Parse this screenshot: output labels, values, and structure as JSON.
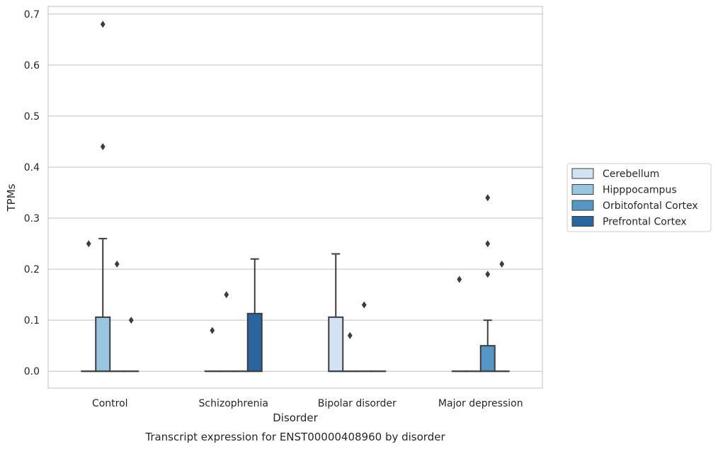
{
  "chart_data": {
    "type": "box",
    "title": "",
    "caption": "Transcript expression for ENST00000408960 by disorder",
    "xlabel": "Disorder",
    "ylabel": "TPMs",
    "ylim": [
      -0.033,
      0.715
    ],
    "yticks": [
      "0.0",
      "0.1",
      "0.2",
      "0.3",
      "0.4",
      "0.5",
      "0.6",
      "0.7"
    ],
    "grid": true,
    "legend_position": "right",
    "categories": [
      "Control",
      "Schizophrenia",
      "Bipolar disorder",
      "Major depression"
    ],
    "series": [
      {
        "name": "Cerebellum",
        "color": "#d2e2f2",
        "boxes": [
          {
            "q1": 0,
            "median": 0,
            "q3": 0,
            "whisker_low": 0,
            "whisker_high": 0,
            "outliers": [
              0.25
            ]
          },
          {
            "q1": 0,
            "median": 0,
            "q3": 0,
            "whisker_low": 0,
            "whisker_high": 0,
            "outliers": [
              0.08
            ]
          },
          {
            "q1": 0,
            "median": 0,
            "q3": 0.106,
            "whisker_low": 0,
            "whisker_high": 0.23,
            "outliers": []
          },
          {
            "q1": 0,
            "median": 0,
            "q3": 0,
            "whisker_low": 0,
            "whisker_high": 0,
            "outliers": [
              0.18
            ]
          }
        ]
      },
      {
        "name": "Hipppocampus",
        "color": "#9ac5df",
        "boxes": [
          {
            "q1": 0,
            "median": 0,
            "q3": 0.106,
            "whisker_low": 0,
            "whisker_high": 0.26,
            "outliers": [
              0.44,
              0.68
            ]
          },
          {
            "q1": 0,
            "median": 0,
            "q3": 0,
            "whisker_low": 0,
            "whisker_high": 0,
            "outliers": [
              0.15
            ]
          },
          {
            "q1": 0,
            "median": 0,
            "q3": 0,
            "whisker_low": 0,
            "whisker_high": 0,
            "outliers": [
              0.07
            ]
          },
          {
            "q1": 0,
            "median": 0,
            "q3": 0,
            "whisker_low": 0,
            "whisker_high": 0,
            "outliers": []
          }
        ]
      },
      {
        "name": "Orbitofontal Cortex",
        "color": "#5596c5",
        "boxes": [
          {
            "q1": 0,
            "median": 0,
            "q3": 0,
            "whisker_low": 0,
            "whisker_high": 0,
            "outliers": [
              0.21
            ]
          },
          {
            "q1": 0,
            "median": 0,
            "q3": 0,
            "whisker_low": 0,
            "whisker_high": 0,
            "outliers": []
          },
          {
            "q1": 0,
            "median": 0,
            "q3": 0,
            "whisker_low": 0,
            "whisker_high": 0,
            "outliers": [
              0.13
            ]
          },
          {
            "q1": 0,
            "median": 0,
            "q3": 0.05,
            "whisker_low": 0,
            "whisker_high": 0.1,
            "outliers": [
              0.19,
              0.25,
              0.34
            ]
          }
        ]
      },
      {
        "name": "Prefrontal Cortex",
        "color": "#2b65a0",
        "boxes": [
          {
            "q1": 0,
            "median": 0,
            "q3": 0,
            "whisker_low": 0,
            "whisker_high": 0,
            "outliers": [
              0.1
            ]
          },
          {
            "q1": 0,
            "median": 0,
            "q3": 0.113,
            "whisker_low": 0,
            "whisker_high": 0.22,
            "outliers": []
          },
          {
            "q1": 0,
            "median": 0,
            "q3": 0,
            "whisker_low": 0,
            "whisker_high": 0,
            "outliers": []
          },
          {
            "q1": 0,
            "median": 0,
            "q3": 0,
            "whisker_low": 0,
            "whisker_high": 0,
            "outliers": [
              0.21
            ]
          }
        ]
      }
    ]
  }
}
